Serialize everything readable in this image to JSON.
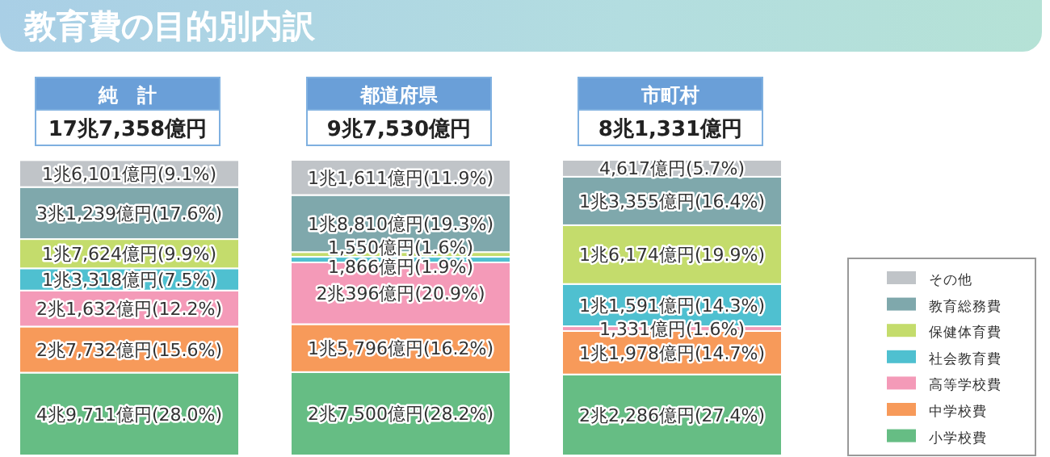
{
  "chart_data": {
    "type": "bar",
    "stacked": true,
    "title": "教育費の目的別内訳",
    "categories": [
      "純　計",
      "都道府県",
      "市町村"
    ],
    "totals": [
      "17兆7,358億円",
      "9兆7,530億円",
      "8兆1,331億円"
    ],
    "legend": "right",
    "series": [
      {
        "name": "小学校費",
        "color": "#66bd84",
        "values": [
          28.0,
          28.2,
          27.4
        ],
        "value_labels": [
          "4兆9,711億円(28.0%)",
          "2兆7,500億円(28.2%)",
          "2兆2,286億円(27.4%)"
        ]
      },
      {
        "name": "中学校費",
        "color": "#f79a5a",
        "values": [
          15.6,
          16.2,
          14.7
        ],
        "value_labels": [
          "2兆7,732億円(15.6%)",
          "1兆5,796億円(16.2%)",
          "1兆1,978億円(14.7%)"
        ]
      },
      {
        "name": "高等学校費",
        "color": "#f49ab8",
        "values": [
          12.2,
          20.9,
          1.6
        ],
        "value_labels": [
          "2兆1,632億円(12.2%)",
          "2兆396億円(20.9%)",
          "1,331億円(1.6%)"
        ]
      },
      {
        "name": "社会教育費",
        "color": "#4fc0d0",
        "values": [
          7.5,
          1.9,
          14.3
        ],
        "value_labels": [
          "1兆3,318億円(7.5%)",
          "1,866億円(1.9%)",
          "1兆1,591億円(14.3%)"
        ]
      },
      {
        "name": "保健体育費",
        "color": "#c4dc6c",
        "values": [
          9.9,
          1.6,
          19.9
        ],
        "value_labels": [
          "1兆7,624億円(9.9%)",
          "1,550億円(1.6%)",
          "1兆6,174億円(19.9%)"
        ]
      },
      {
        "name": "教育総務費",
        "color": "#7fa8ac",
        "values": [
          17.6,
          19.3,
          16.4
        ],
        "value_labels": [
          "3兆1,239億円(17.6%)",
          "1兆8,810億円(19.3%)",
          "1兆3,355億円(16.4%)"
        ]
      },
      {
        "name": "その他",
        "color": "#c0c4c8",
        "values": [
          9.1,
          11.9,
          5.7
        ],
        "value_labels": [
          "1兆6,101億円(9.1%)",
          "1兆1,611億円(11.9%)",
          "4,617億円(5.7%)"
        ]
      }
    ]
  }
}
